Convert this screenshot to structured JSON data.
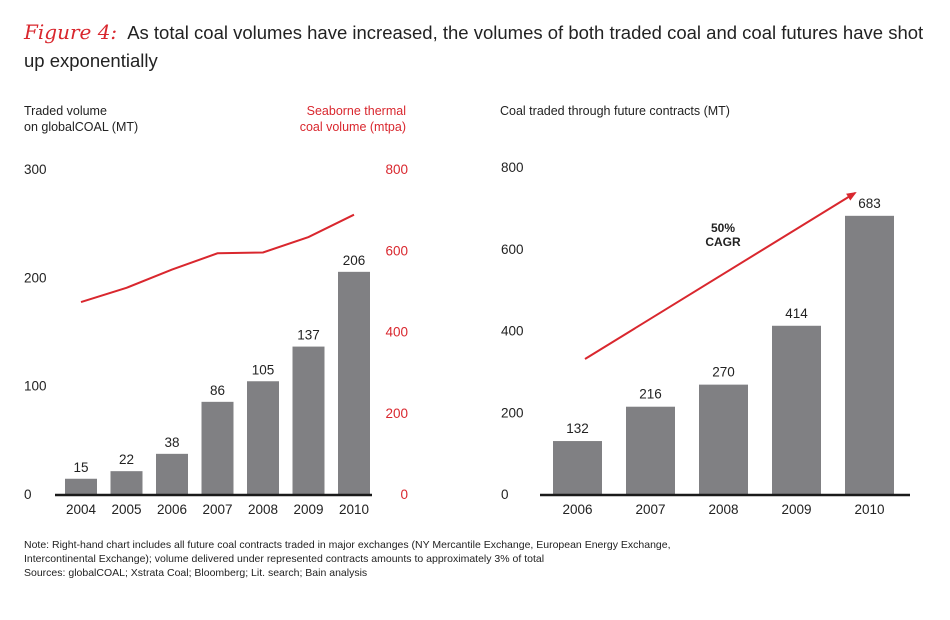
{
  "title": {
    "figure_label": "Figure 4:",
    "text": "As total coal volumes have increased, the volumes of both traded coal and coal futures have shot up exponentially"
  },
  "chart_data": [
    {
      "type": "bar",
      "title": "",
      "categories": [
        "2004",
        "2005",
        "2006",
        "2007",
        "2008",
        "2009",
        "2010"
      ],
      "series": [
        {
          "name": "Traded volume on globalCOAL (MT)",
          "axis": "left",
          "type": "bar",
          "values": [
            15,
            22,
            38,
            86,
            105,
            137,
            206
          ]
        },
        {
          "name": "Seaborne thermal coal volume (mtpa)",
          "axis": "right",
          "type": "line",
          "values": [
            475,
            510,
            555,
            595,
            597,
            635,
            690
          ]
        }
      ],
      "ylabel": "Traded volume\non globalCOAL (MT)",
      "ylabel_right": "Seaborne thermal\ncoal volume (mtpa)",
      "ylim": [
        0,
        300
      ],
      "yticks": [
        "0",
        "100",
        "200",
        "300"
      ],
      "ylim_right": [
        0,
        800
      ],
      "yticks_right": [
        "0",
        "200",
        "400",
        "600",
        "800"
      ],
      "colors": {
        "bar": "#808083",
        "line": "#d9272e",
        "axis": "#1a1a1a"
      }
    },
    {
      "type": "bar",
      "title": "",
      "categories": [
        "2006",
        "2007",
        "2008",
        "2009",
        "2010"
      ],
      "values": [
        132,
        216,
        270,
        414,
        683
      ],
      "ylabel": "Coal traded through future contracts (MT)",
      "ylim": [
        0,
        800
      ],
      "yticks": [
        "0",
        "200",
        "400",
        "600",
        "800"
      ],
      "annotation": {
        "line1": "50%",
        "line2": "CAGR"
      },
      "colors": {
        "bar": "#808083",
        "arrow": "#d9272e",
        "axis": "#1a1a1a"
      }
    }
  ],
  "note": {
    "line1": "Note: Right-hand chart includes all future coal contracts traded in major exchanges (NY Mercantile Exchange, European Energy Exchange,",
    "line2": "Intercontinental Exchange); volume delivered under represented contracts amounts to approximately 3% of total",
    "sources": "Sources: globalCOAL; Xstrata Coal; Bloomberg; Lit. search; Bain analysis"
  }
}
